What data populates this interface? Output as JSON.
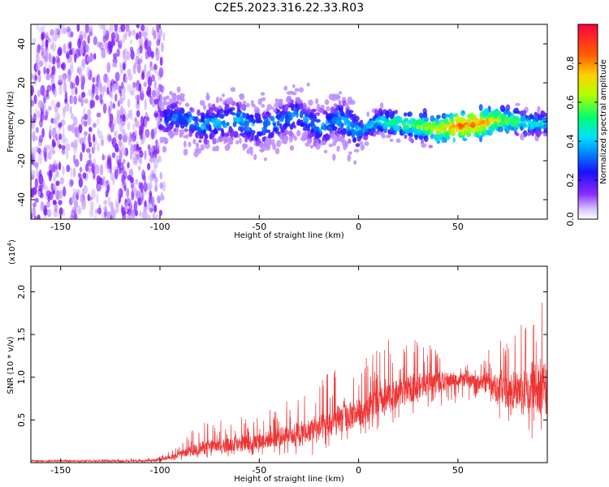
{
  "title": "C2E5.2023.316.22.33.R03",
  "colors": {
    "snr_line": "#ee3333",
    "spectrogram_noise": "#7f1aff",
    "colormap": [
      "#ffffff",
      "#b07cff",
      "#6a00ff",
      "#0a1aff",
      "#00d0ff",
      "#00ff80",
      "#c8ff00",
      "#ff8000",
      "#ff0033"
    ]
  },
  "chart_data": [
    {
      "type": "heatmap",
      "xlabel": "Height of straight line (km)",
      "ylabel": "Frequency (Hz)",
      "xlim": [
        -165,
        95
      ],
      "ylim": [
        -50,
        50
      ],
      "x_ticks": [
        -150,
        -100,
        -50,
        0,
        50
      ],
      "y_ticks": [
        -40,
        -20,
        0,
        20,
        40
      ],
      "colorbar": {
        "label": "Normalized spectral amplitude",
        "range": [
          0,
          1
        ],
        "ticks": [
          "0.0",
          "0.2",
          "0.4",
          "0.6",
          "0.8"
        ],
        "tick_values": [
          0.0,
          0.2,
          0.4,
          0.6,
          0.8
        ]
      },
      "ridge": {
        "x": [
          -100,
          -90,
          -80,
          -70,
          -60,
          -50,
          -40,
          -30,
          -20,
          -10,
          0,
          10,
          20,
          30,
          40,
          50,
          60,
          70,
          80,
          90
        ],
        "center_hz": [
          0,
          3,
          -2,
          0,
          1,
          -3,
          0,
          4,
          -4,
          2,
          -5,
          0,
          -1,
          -2,
          -4,
          -2,
          -1,
          1,
          0,
          -1
        ],
        "amplitude": [
          0.3,
          0.33,
          0.36,
          0.38,
          0.38,
          0.36,
          0.35,
          0.33,
          0.34,
          0.38,
          0.42,
          0.48,
          0.55,
          0.62,
          0.7,
          0.85,
          0.82,
          0.68,
          0.55,
          0.45
        ]
      }
    },
    {
      "type": "line",
      "xlabel": "Height of straight line (km)",
      "ylabel": "SNR (10 * v/v)",
      "y_multiplier": "(x10",
      "y_multiplier_exp": "4",
      "y_multiplier_close": ")",
      "xlim": [
        -165,
        95
      ],
      "ylim": [
        0,
        2.3
      ],
      "x_ticks": [
        -150,
        -100,
        -50,
        0,
        50
      ],
      "y_ticks": [
        "0.5",
        "1.0",
        "1.5",
        "2.0"
      ],
      "y_tick_values": [
        0.5,
        1.0,
        1.5,
        2.0
      ],
      "envelope": {
        "x": [
          -165,
          -110,
          -100,
          -90,
          -80,
          -70,
          -60,
          -50,
          -40,
          -30,
          -20,
          -15,
          -10,
          0,
          10,
          20,
          30,
          40,
          50,
          60,
          68,
          70,
          80,
          90,
          95
        ],
        "min": [
          0,
          0,
          0.0,
          0.02,
          0.05,
          0.05,
          0.05,
          0.07,
          0.08,
          0.08,
          0.08,
          0.15,
          0.2,
          0.3,
          0.38,
          0.5,
          0.6,
          0.65,
          0.7,
          0.75,
          0.7,
          0.4,
          0.3,
          0.2,
          0.2
        ],
        "mid": [
          0.02,
          0.02,
          0.03,
          0.1,
          0.17,
          0.2,
          0.22,
          0.25,
          0.3,
          0.35,
          0.4,
          0.45,
          0.5,
          0.58,
          0.7,
          0.8,
          0.9,
          0.95,
          0.97,
          0.95,
          0.9,
          0.85,
          0.85,
          0.85,
          0.9
        ],
        "max": [
          0.04,
          0.05,
          0.08,
          0.2,
          0.5,
          0.5,
          0.55,
          0.6,
          0.7,
          0.8,
          0.9,
          1.15,
          1.2,
          1.2,
          1.4,
          1.5,
          1.45,
          1.35,
          1.1,
          1.2,
          1.45,
          1.5,
          1.6,
          1.7,
          2.3
        ]
      }
    }
  ]
}
